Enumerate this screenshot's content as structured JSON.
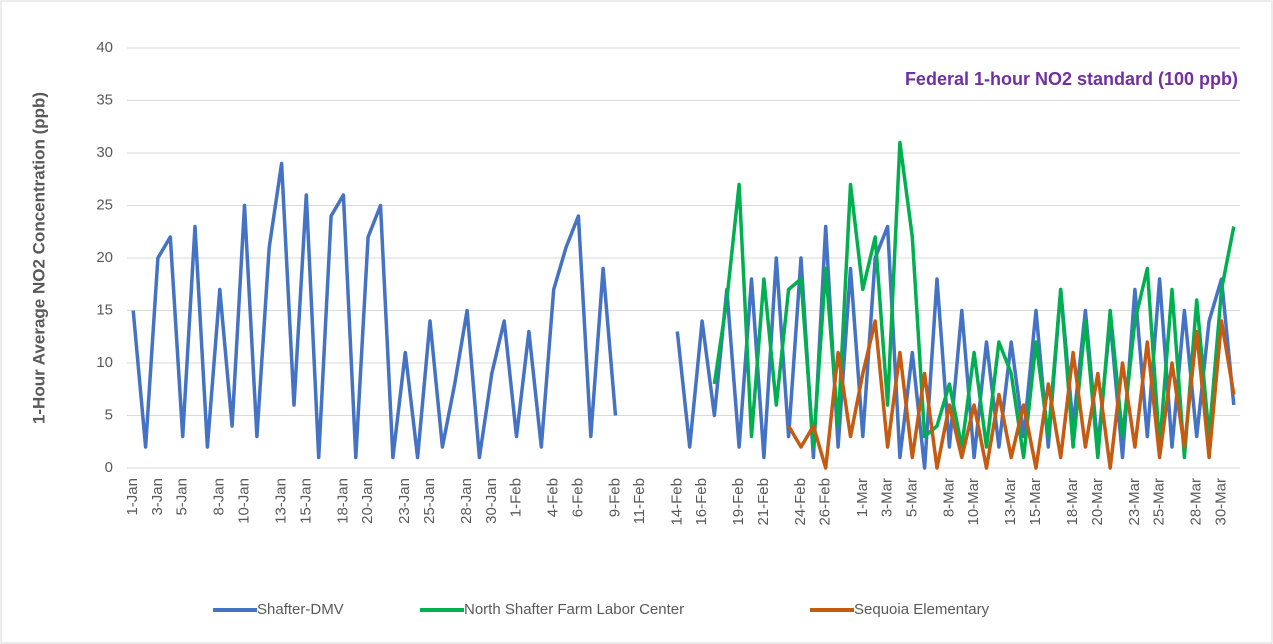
{
  "chart_data": {
    "type": "line",
    "y_label": "1-Hour Average NO2 Concentration (ppb)",
    "annotation": "Federal 1-hour NO2 standard (100 ppb)",
    "annotation_color": "#7030a0",
    "categories": [
      "1-Jan",
      null,
      "3-Jan",
      null,
      "5-Jan",
      null,
      null,
      "8-Jan",
      null,
      "10-Jan",
      null,
      null,
      "13-Jan",
      null,
      "15-Jan",
      null,
      null,
      "18-Jan",
      null,
      "20-Jan",
      null,
      null,
      "23-Jan",
      null,
      "25-Jan",
      null,
      null,
      "28-Jan",
      null,
      "30-Jan",
      null,
      "1-Feb",
      null,
      null,
      "4-Feb",
      null,
      "6-Feb",
      null,
      null,
      "9-Feb",
      null,
      "11-Feb",
      null,
      null,
      "14-Feb",
      null,
      "16-Feb",
      null,
      null,
      "19-Feb",
      null,
      "21-Feb",
      null,
      null,
      "24-Feb",
      null,
      "26-Feb",
      null,
      null,
      "1-Mar",
      null,
      "3-Mar",
      null,
      "5-Mar",
      null,
      null,
      "8-Mar",
      null,
      "10-Mar",
      null,
      null,
      "13-Mar",
      null,
      "15-Mar",
      null,
      null,
      "18-Mar",
      null,
      "20-Mar",
      null,
      null,
      "23-Mar",
      null,
      "25-Mar",
      null,
      null,
      "28-Mar",
      null,
      "30-Mar",
      null
    ],
    "series": [
      {
        "name": "Shafter-DMV",
        "color": "#4472c4",
        "values": [
          15,
          2,
          20,
          22,
          3,
          23,
          2,
          17,
          4,
          25,
          3,
          21,
          29,
          6,
          26,
          1,
          24,
          26,
          1,
          22,
          25,
          1,
          11,
          1,
          14,
          2,
          8,
          15,
          1,
          9,
          14,
          3,
          13,
          2,
          17,
          21,
          24,
          3,
          19,
          5,
          null,
          null,
          null,
          null,
          13,
          2,
          14,
          5,
          17,
          2,
          18,
          1,
          20,
          3,
          20,
          1,
          23,
          2,
          19,
          3,
          20,
          23,
          1,
          11,
          0,
          18,
          2,
          15,
          1,
          12,
          2,
          12,
          3,
          15,
          2,
          17,
          4,
          15,
          2,
          14,
          1,
          17,
          3,
          18,
          2,
          15,
          3,
          14,
          18,
          6
        ]
      },
      {
        "name": "North Shafter Farm Labor Center",
        "color": "#00b050",
        "values": [
          null,
          null,
          null,
          null,
          null,
          null,
          null,
          null,
          null,
          null,
          null,
          null,
          null,
          null,
          null,
          null,
          null,
          null,
          null,
          null,
          null,
          null,
          null,
          null,
          null,
          null,
          null,
          null,
          null,
          null,
          null,
          null,
          null,
          null,
          null,
          null,
          null,
          null,
          null,
          null,
          null,
          null,
          null,
          null,
          null,
          null,
          null,
          8,
          16,
          27,
          3,
          18,
          6,
          17,
          18,
          2,
          19,
          4,
          27,
          17,
          22,
          6,
          31,
          22,
          3,
          4,
          8,
          2,
          11,
          2,
          12,
          9,
          1,
          12,
          3,
          17,
          2,
          14,
          1,
          15,
          3,
          14,
          19,
          2,
          17,
          1,
          16,
          3,
          17,
          23
        ]
      },
      {
        "name": "Sequoia Elementary",
        "color": "#c55a11",
        "values": [
          null,
          null,
          null,
          null,
          null,
          null,
          null,
          null,
          null,
          null,
          null,
          null,
          null,
          null,
          null,
          null,
          null,
          null,
          null,
          null,
          null,
          null,
          null,
          null,
          null,
          null,
          null,
          null,
          null,
          null,
          null,
          null,
          null,
          null,
          null,
          null,
          null,
          null,
          null,
          null,
          null,
          null,
          null,
          null,
          null,
          null,
          null,
          null,
          null,
          null,
          null,
          null,
          null,
          4,
          2,
          4,
          0,
          11,
          3,
          9,
          14,
          2,
          11,
          1,
          9,
          0,
          6,
          1,
          6,
          0,
          7,
          1,
          6,
          0,
          8,
          1,
          11,
          2,
          9,
          0,
          10,
          2,
          12,
          1,
          10,
          2,
          13,
          1,
          14,
          7
        ]
      }
    ],
    "ylim": [
      0,
      40
    ],
    "yticks": [
      0,
      5,
      10,
      15,
      20,
      25,
      30,
      35,
      40
    ],
    "grid": true,
    "legend": "bottom"
  }
}
